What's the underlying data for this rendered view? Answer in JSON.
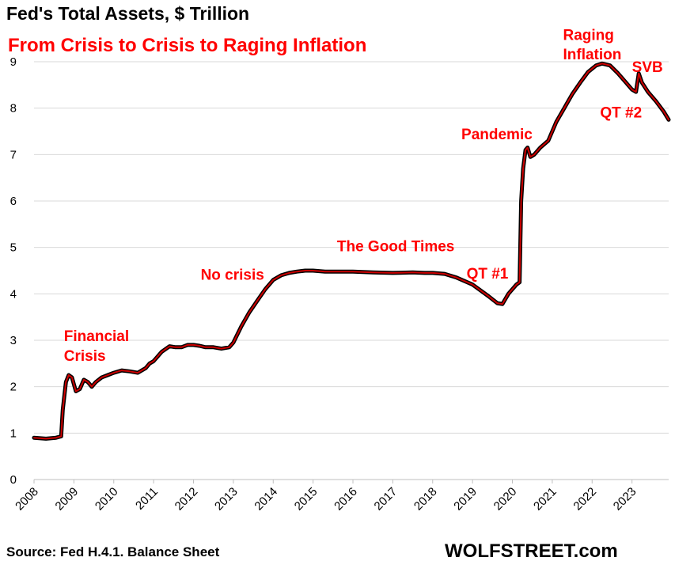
{
  "title": "Fed's Total Assets, $ Trillion",
  "subtitle": "From Crisis to Crisis to Raging Inflation",
  "source": "Source: Fed H.4.1. Balance Sheet",
  "brand": "WOLFSTREET.com",
  "colors": {
    "line": "#cc0000",
    "shadow": "#000000",
    "annotation": "#ff0000",
    "grid": "#d9d9d9"
  },
  "chart_data": {
    "type": "line",
    "title": "Fed's Total Assets, $ Trillion",
    "subtitle": "From Crisis to Crisis to Raging Inflation",
    "xlabel": "",
    "ylabel": "",
    "xlim": [
      2008,
      2023.92
    ],
    "ylim": [
      0,
      9
    ],
    "y_ticks": [
      0,
      1,
      2,
      3,
      4,
      5,
      6,
      7,
      8,
      9
    ],
    "x_ticks": [
      "2008",
      "2009",
      "2010",
      "2011",
      "2012",
      "2013",
      "2014",
      "2015",
      "2016",
      "2017",
      "2018",
      "2019",
      "2020",
      "2021",
      "2022",
      "2023"
    ],
    "grid": "horizontal",
    "series": [
      {
        "x": [
          2008.0,
          2008.3,
          2008.55,
          2008.68,
          2008.72,
          2008.8,
          2008.87,
          2008.95,
          2009.05,
          2009.15,
          2009.25,
          2009.35,
          2009.45,
          2009.55,
          2009.7,
          2009.85,
          2010.0,
          2010.2,
          2010.4,
          2010.6,
          2010.8,
          2010.9,
          2011.0,
          2011.2,
          2011.4,
          2011.55,
          2011.7,
          2011.85,
          2012.0,
          2012.15,
          2012.3,
          2012.5,
          2012.7,
          2012.9,
          2013.0,
          2013.2,
          2013.4,
          2013.6,
          2013.8,
          2014.0,
          2014.2,
          2014.4,
          2014.6,
          2014.8,
          2015.0,
          2015.3,
          2015.6,
          2016.0,
          2016.5,
          2017.0,
          2017.5,
          2017.8,
          2018.0,
          2018.3,
          2018.6,
          2019.0,
          2019.4,
          2019.62,
          2019.75,
          2019.9,
          2020.1,
          2020.18,
          2020.22,
          2020.27,
          2020.33,
          2020.38,
          2020.45,
          2020.55,
          2020.7,
          2020.9,
          2021.1,
          2021.3,
          2021.5,
          2021.7,
          2021.9,
          2022.1,
          2022.25,
          2022.45,
          2022.65,
          2022.85,
          2023.0,
          2023.1,
          2023.17,
          2023.25,
          2023.4,
          2023.6,
          2023.8,
          2023.92
        ],
        "values": [
          0.9,
          0.88,
          0.9,
          0.93,
          1.5,
          2.1,
          2.25,
          2.2,
          1.9,
          1.95,
          2.15,
          2.1,
          2.0,
          2.1,
          2.2,
          2.25,
          2.3,
          2.35,
          2.33,
          2.3,
          2.4,
          2.5,
          2.55,
          2.75,
          2.87,
          2.85,
          2.85,
          2.9,
          2.9,
          2.88,
          2.85,
          2.85,
          2.82,
          2.85,
          2.95,
          3.3,
          3.6,
          3.85,
          4.1,
          4.3,
          4.4,
          4.45,
          4.48,
          4.5,
          4.5,
          4.48,
          4.48,
          4.48,
          4.46,
          4.45,
          4.46,
          4.45,
          4.45,
          4.43,
          4.35,
          4.2,
          3.95,
          3.8,
          3.78,
          4.0,
          4.2,
          4.25,
          6.0,
          6.7,
          7.1,
          7.15,
          6.95,
          7.0,
          7.15,
          7.3,
          7.7,
          8.0,
          8.3,
          8.55,
          8.78,
          8.92,
          8.96,
          8.92,
          8.75,
          8.55,
          8.4,
          8.35,
          8.75,
          8.55,
          8.35,
          8.15,
          7.92,
          7.75
        ]
      }
    ],
    "annotations": [
      {
        "text": "Financial",
        "x": 2008.75,
        "y": 2.98
      },
      {
        "text": "Crisis",
        "x": 2008.75,
        "y": 2.56
      },
      {
        "text": "No crisis",
        "x": 2012.18,
        "y": 4.3
      },
      {
        "text": "The Good Times",
        "x": 2015.6,
        "y": 4.92
      },
      {
        "text": "QT #1",
        "x": 2018.85,
        "y": 4.33
      },
      {
        "text": "Pandemic",
        "x": 2018.72,
        "y": 7.33
      },
      {
        "text": "Raging",
        "x": 2021.27,
        "y": 9.47
      },
      {
        "text": "Inflation",
        "x": 2021.27,
        "y": 9.05
      },
      {
        "text": "SVB",
        "x": 2023.0,
        "y": 8.78
      },
      {
        "text": "QT #2",
        "x": 2022.2,
        "y": 7.8
      }
    ]
  }
}
